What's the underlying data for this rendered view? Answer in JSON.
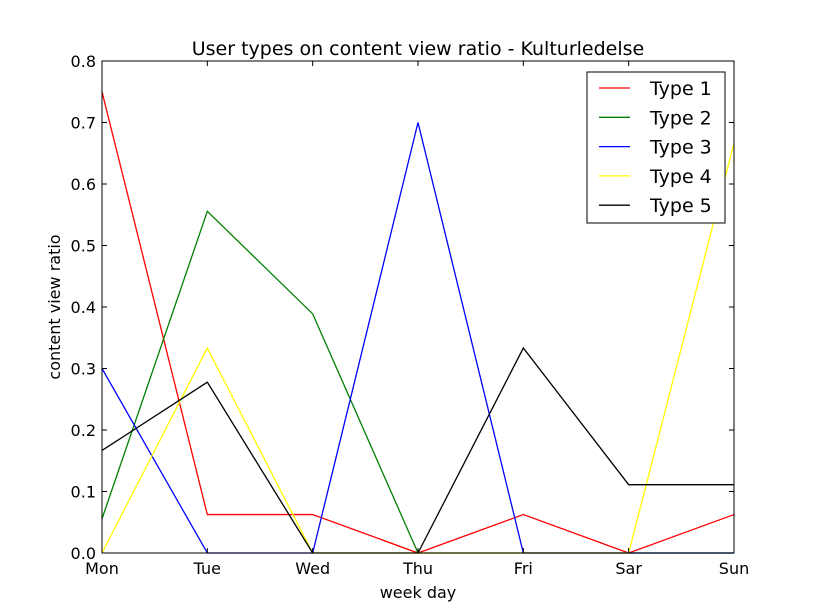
{
  "chart_data": {
    "type": "line",
    "title": "User types on content view ratio - Kulturledelse",
    "xlabel": "week day",
    "ylabel": "content view ratio",
    "categories": [
      "Mon",
      "Tue",
      "Wed",
      "Thu",
      "Fri",
      "Sar",
      "Sun"
    ],
    "ylim": [
      0,
      0.8
    ],
    "yticks": [
      "0.0",
      "0.1",
      "0.2",
      "0.3",
      "0.4",
      "0.5",
      "0.6",
      "0.7",
      "0.8"
    ],
    "grid": false,
    "legend_position": "top-right",
    "series": [
      {
        "name": "Type 1",
        "color": "#ff0000",
        "values": [
          0.75,
          0.0625,
          0.0625,
          0.0,
          0.0625,
          0.0,
          0.0625
        ]
      },
      {
        "name": "Type 2",
        "color": "#008000",
        "values": [
          0.0556,
          0.5556,
          0.3889,
          0.0,
          0.0,
          0.0,
          0.0
        ]
      },
      {
        "name": "Type 3",
        "color": "#0000ff",
        "values": [
          0.3,
          0.0,
          0.0,
          0.7,
          0.0,
          0.0,
          0.0
        ]
      },
      {
        "name": "Type 4",
        "color": "#ffff00",
        "values": [
          0.0,
          0.3333,
          0.0,
          0.0,
          0.0,
          0.0,
          0.6667
        ]
      },
      {
        "name": "Type 5",
        "color": "#000000",
        "values": [
          0.1667,
          0.2778,
          0.0,
          0.0,
          0.3333,
          0.1111,
          0.1111
        ]
      }
    ]
  }
}
